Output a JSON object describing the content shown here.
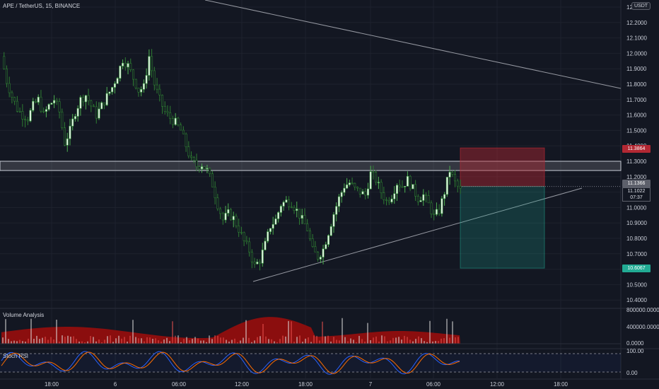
{
  "header": {
    "title": "APE / TetherUS, 15, BINANCE"
  },
  "axis": {
    "unit_button": "USDT"
  },
  "badges": {
    "stop": {
      "label": "11.3864",
      "color": "#b22833"
    },
    "last": {
      "label": "11.1366",
      "color": "#5d606b"
    },
    "current": {
      "price": "11.1022",
      "countdown": "07:37"
    },
    "target": {
      "label": "10.6067",
      "color": "#22ab94"
    }
  },
  "panes": {
    "volume_label": "Volume Analysis",
    "rsi_label": "Stoch RSI"
  },
  "colors": {
    "up": "#26a69a",
    "down": "#ef5350",
    "background": "#131722",
    "candle_up_fill": "#e8f5e9",
    "candle_down_fill": "#131722"
  },
  "chart_data": {
    "type": "candlestick",
    "title": "APE / TetherUS, 15, BINANCE",
    "y_ticks": [
      "12.3000",
      "12.2000",
      "12.1000",
      "12.0000",
      "11.9000",
      "11.8000",
      "11.7000",
      "11.6000",
      "11.5000",
      "11.4000",
      "11.3000",
      "11.2000",
      "11.1000",
      "11.0000",
      "10.9000",
      "10.8000",
      "10.7000",
      "10.6000",
      "10.5000",
      "10.4000"
    ],
    "y_range": [
      10.37,
      12.32
    ],
    "x_ticks": [
      "18:00",
      "6",
      "06:00",
      "12:00",
      "18:00",
      "7",
      "06:00",
      "12:00",
      "18:00"
    ],
    "close_path": [
      11.98,
      11.82,
      11.72,
      11.64,
      11.6,
      11.58,
      11.66,
      11.7,
      11.6,
      11.66,
      11.7,
      11.62,
      11.42,
      11.5,
      11.62,
      11.7,
      11.73,
      11.66,
      11.6,
      11.66,
      11.72,
      11.78,
      11.86,
      11.96,
      11.92,
      11.84,
      11.76,
      11.78,
      11.98,
      11.8,
      11.7,
      11.62,
      11.58,
      11.55,
      11.5,
      11.4,
      11.3,
      11.27,
      11.28,
      11.24,
      11.15,
      11.02,
      10.92,
      10.96,
      10.93,
      10.86,
      10.78,
      10.72,
      10.62,
      10.66,
      10.76,
      10.88,
      10.92,
      11.02,
      11.04,
      11.03,
      10.98,
      10.92,
      10.86,
      10.72,
      10.68,
      10.73,
      10.84,
      10.96,
      11.06,
      11.14,
      11.16,
      11.12,
      11.1,
      11.08,
      11.22,
      11.18,
      11.1,
      11.04,
      11.08,
      11.16,
      11.14,
      11.18,
      11.12,
      11.06,
      11.08,
      11.02,
      10.94,
      10.98,
      11.1,
      11.24,
      11.16,
      11.11
    ],
    "resistance_zone": {
      "top": 11.3,
      "bottom": 11.24
    },
    "current_price": 11.1022,
    "last_price": 11.1366,
    "stop_price": 11.3864,
    "target_price": 10.6067,
    "volume_axis_ticks": [
      "800000.0000",
      "400000.0000",
      "0.0000"
    ],
    "stoch_rsi_ticks": [
      "100.00",
      "0.00"
    ]
  }
}
